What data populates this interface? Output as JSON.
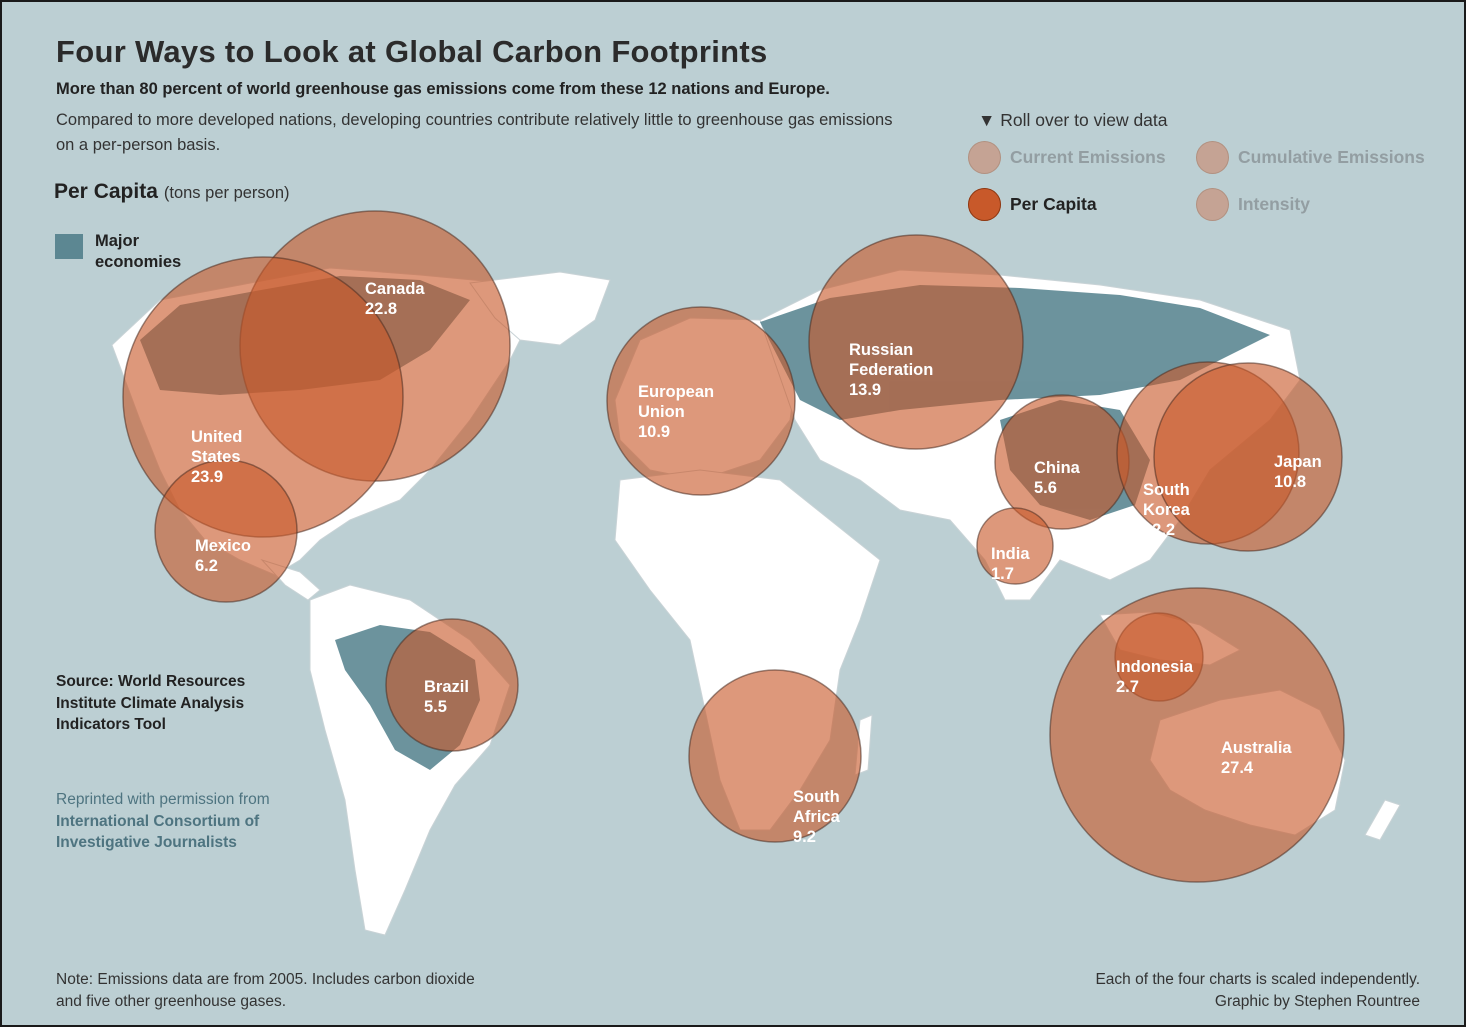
{
  "title": "Four Ways to Look at Global Carbon Footprints",
  "subtitle": "More than 80 percent of world greenhouse gas emissions come from these 12 nations and Europe.",
  "intro": "Compared to more developed nations, developing countries contribute relatively little to greenhouse gas emissions on a per-person basis.",
  "view": {
    "title": "Per Capita",
    "unit": "(tons per person)"
  },
  "legend": {
    "label": "Major economies",
    "color": "#5c8792"
  },
  "controls": {
    "hint": "Roll over to view data",
    "options": [
      {
        "label": "Current Emissions",
        "active": false
      },
      {
        "label": "Cumulative Emissions",
        "active": false
      },
      {
        "label": "Per Capita",
        "active": true
      },
      {
        "label": "Intensity",
        "active": false
      }
    ]
  },
  "colors": {
    "ocean": "#bccfd3",
    "land": "#ffffff",
    "major_economy": "#5c8792",
    "bubble_fill": "#c8592a",
    "bubble_stroke": "#4a2e22"
  },
  "regions": [
    {
      "name": "Canada",
      "value": "22.8"
    },
    {
      "name": "United States",
      "value": "23.9"
    },
    {
      "name": "Mexico",
      "value": "6.2"
    },
    {
      "name": "Brazil",
      "value": "5.5"
    },
    {
      "name": "European Union",
      "value": "10.9"
    },
    {
      "name": "Russian Federation",
      "value": "13.9"
    },
    {
      "name": "China",
      "value": "5.6"
    },
    {
      "name": "India",
      "value": "1.7"
    },
    {
      "name": "South Korea",
      "value": "12.2"
    },
    {
      "name": "Japan",
      "value": "10.8"
    },
    {
      "name": "Indonesia",
      "value": "2.7"
    },
    {
      "name": "Australia",
      "value": "27.4"
    },
    {
      "name": "South Africa",
      "value": "9.2"
    }
  ],
  "source": "Source: World Resources Institute Climate Analysis Indicators Tool",
  "reprint": {
    "prefix": "Reprinted with permission from",
    "org": "International Consortium of Investigative Journalists"
  },
  "note": "Note: Emissions data are from 2005. Includes carbon dioxide and five other greenhouse gases.",
  "scale_note": "Each of the four charts is scaled independently.",
  "credit": "Graphic by Stephen Rountree"
}
